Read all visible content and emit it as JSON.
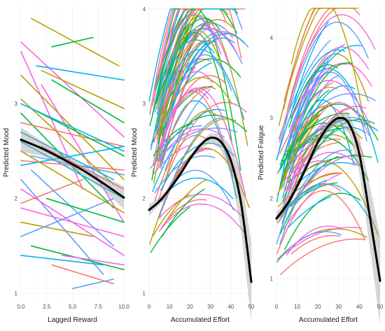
{
  "chart_data": [
    {
      "type": "line",
      "xlabel": "Lagged Reward",
      "ylabel": "Predicted Mood",
      "xlim": [
        0,
        10
      ],
      "ylim": [
        0.92,
        4.05
      ],
      "x_ticks": [
        0,
        2.5,
        5,
        7.5,
        10
      ],
      "x_tick_labels": [
        "0.0",
        "2.5",
        "5.0",
        "7.5",
        "10.0"
      ],
      "y_ticks": [
        1,
        2,
        3
      ],
      "grid": true,
      "legend": "none",
      "series_colors": [
        "#f564e3",
        "#b79f00",
        "#00ba38",
        "#00b4ef",
        "#f8766d",
        "#619cff"
      ],
      "overall_fit": {
        "x": [
          0,
          2,
          4,
          6,
          8,
          10
        ],
        "y": [
          2.62,
          2.53,
          2.42,
          2.3,
          2.16,
          2.01
        ],
        "band_width": [
          0.13,
          0.08,
          0.05,
          0.05,
          0.07,
          0.12
        ]
      },
      "individual_lines": [
        [
          0,
          3.65,
          10,
          2.65
        ],
        [
          0,
          3.3,
          10,
          2.2
        ],
        [
          0,
          2.9,
          9,
          1.9
        ],
        [
          0,
          2.6,
          10,
          2.0
        ],
        [
          0,
          2.4,
          10,
          2.3
        ],
        [
          0,
          2.2,
          8,
          1.2
        ],
        [
          0,
          3.55,
          6,
          2.1
        ],
        [
          1,
          3.9,
          9.5,
          3.4
        ],
        [
          3,
          3.6,
          7,
          3.7
        ],
        [
          1.5,
          3.4,
          10,
          3.25
        ],
        [
          0,
          2.8,
          10,
          2.55
        ],
        [
          1,
          2.45,
          10,
          2.25
        ],
        [
          0,
          1.9,
          10,
          1.6
        ],
        [
          0,
          1.75,
          7,
          1.6
        ],
        [
          1,
          1.5,
          10,
          1.25
        ],
        [
          0,
          1.4,
          8,
          1.3
        ],
        [
          3,
          1.3,
          9,
          1.1
        ],
        [
          5,
          1.05,
          9,
          1.15
        ],
        [
          2,
          3.2,
          10,
          1.75
        ],
        [
          0,
          3.05,
          9,
          2.15
        ],
        [
          1,
          2.95,
          10,
          2.45
        ],
        [
          0,
          2.7,
          9,
          2.2
        ],
        [
          2,
          2.55,
          10,
          2.1
        ],
        [
          1,
          2.3,
          9,
          1.5
        ],
        [
          0,
          2.1,
          10,
          1.4
        ],
        [
          2,
          3.35,
          10,
          2.95
        ],
        [
          3,
          3.25,
          10,
          2.8
        ],
        [
          0,
          2.35,
          10,
          2.55
        ],
        [
          0,
          1.95,
          6,
          2.2
        ],
        [
          0,
          1.6,
          9,
          2.0
        ],
        [
          4,
          1.4,
          10,
          1.3
        ],
        [
          0,
          2.5,
          10,
          1.85
        ],
        [
          2.5,
          2.0,
          10,
          1.75
        ],
        [
          0,
          3.0,
          10,
          2.5
        ]
      ]
    },
    {
      "type": "line",
      "xlabel": "Accumulated Effort",
      "ylabel": "Predicted Mood",
      "xlim": [
        0,
        50
      ],
      "ylim": [
        0.92,
        4.05
      ],
      "x_ticks": [
        0,
        10,
        20,
        30,
        40,
        50
      ],
      "y_ticks": [
        1,
        2,
        3,
        4
      ],
      "grid": true,
      "legend": "none",
      "overall_fit": {
        "x": [
          0,
          5,
          10,
          15,
          20,
          25,
          30,
          35,
          40,
          45,
          50
        ],
        "y": [
          1.88,
          1.97,
          2.1,
          2.25,
          2.42,
          2.56,
          2.64,
          2.6,
          2.4,
          1.95,
          1.12
        ],
        "band_width": [
          0.06,
          0.04,
          0.03,
          0.03,
          0.03,
          0.04,
          0.05,
          0.08,
          0.15,
          0.28,
          0.42
        ]
      },
      "curve_template": {
        "x_start": 0,
        "x_end": 48,
        "peak_x": 30,
        "peak_y": 2.62,
        "end_y": 1.0
      }
    },
    {
      "type": "line",
      "xlabel": "Accumulated Effort",
      "ylabel": "Predicted Fatigue",
      "xlim": [
        0,
        50
      ],
      "ylim": [
        0.72,
        4.42
      ],
      "x_ticks": [
        0,
        10,
        20,
        30,
        40,
        50
      ],
      "y_ticks": [
        1,
        2,
        3,
        4
      ],
      "grid": true,
      "legend": "none",
      "overall_fit": {
        "x": [
          0,
          5,
          10,
          15,
          20,
          25,
          30,
          35,
          40,
          45,
          50
        ],
        "y": [
          1.75,
          1.92,
          2.15,
          2.42,
          2.7,
          2.9,
          3.0,
          2.93,
          2.55,
          1.78,
          0.97
        ],
        "band_width": [
          0.08,
          0.05,
          0.04,
          0.04,
          0.05,
          0.06,
          0.08,
          0.12,
          0.22,
          0.38,
          0.55
        ]
      },
      "curve_template": {
        "x_start": 0,
        "x_end": 50,
        "peak_x": 31,
        "peak_y": 3.0,
        "end_y": 1.5
      }
    }
  ]
}
